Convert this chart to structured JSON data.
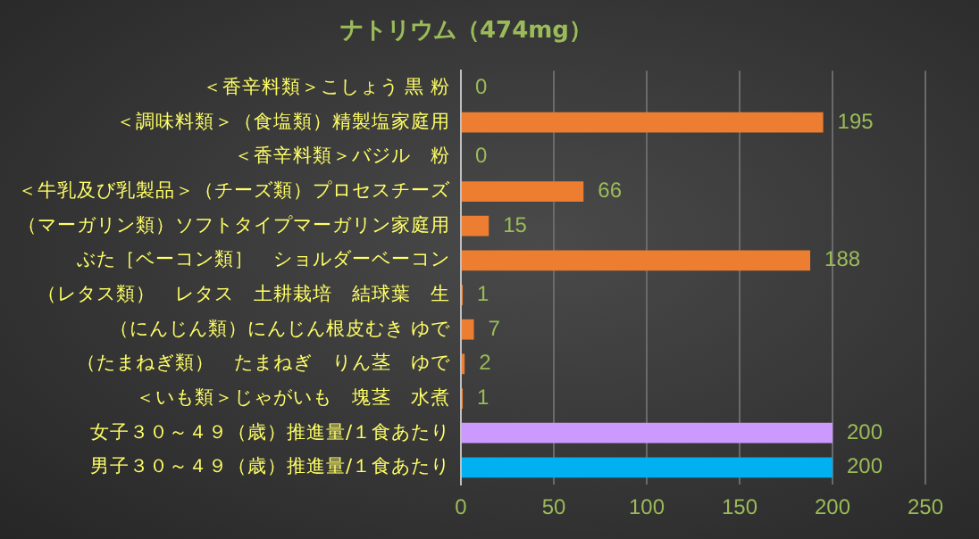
{
  "chart_data": {
    "type": "bar",
    "orientation": "horizontal",
    "title": "ナトリウム（474mg）",
    "categories": [
      "＜香辛料類＞こしょう 黒 粉",
      "＜調味料類＞（食塩類）精製塩家庭用",
      "＜香辛料類＞バジル　粉",
      "＜牛乳及び乳製品＞（チーズ類）プロセスチーズ",
      "（マーガリン類）ソフトタイプマーガリン家庭用",
      "ぶた［ベーコン類］　ショルダーベーコン",
      "（レタス類）　レタス　土耕栽培　結球葉　生",
      "（にんじん類）にんじん根皮むき ゆで",
      "（たまねぎ類）　たまねぎ　りん茎　ゆで",
      "＜いも類＞じゃがいも　塊茎　水煮",
      "女子３０～４９（歳）推進量/１食あたり",
      "男子３０～４９（歳）推進量/１食あたり"
    ],
    "values": [
      0,
      195,
      0,
      66,
      15,
      188,
      1,
      7,
      2,
      1,
      200,
      200
    ],
    "colors": [
      "#ed7d31",
      "#ed7d31",
      "#ed7d31",
      "#ed7d31",
      "#ed7d31",
      "#ed7d31",
      "#ed7d31",
      "#ed7d31",
      "#ed7d31",
      "#ed7d31",
      "#cc99ff",
      "#00b0f0"
    ],
    "xlim": [
      0,
      250
    ],
    "xticks": [
      0,
      50,
      100,
      150,
      200,
      250
    ],
    "grid": "x",
    "data_labels": true,
    "legend": false
  }
}
